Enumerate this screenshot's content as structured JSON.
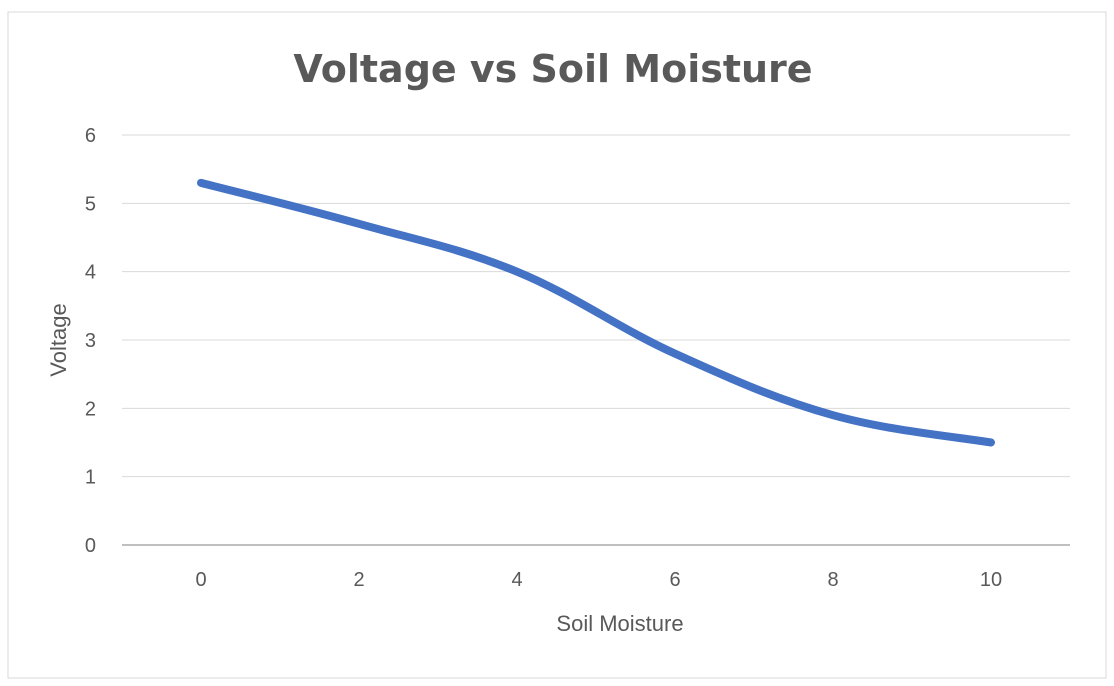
{
  "chart_data": {
    "type": "line",
    "title": "Voltage vs Soil Moisture",
    "xlabel": "Soil Moisture",
    "ylabel": "Voltage",
    "x": [
      0,
      2,
      4,
      6,
      8,
      10
    ],
    "series": [
      {
        "values": [
          5.3,
          4.7,
          4.0,
          2.8,
          1.9,
          1.5
        ]
      }
    ],
    "xticks": [
      "0",
      "2",
      "4",
      "6",
      "8",
      "10"
    ],
    "yticks": [
      "0",
      "1",
      "2",
      "3",
      "4",
      "5",
      "6"
    ],
    "xlim": [
      0,
      10
    ],
    "ylim": [
      0,
      6
    ],
    "grid": "horizontal",
    "legend": "none",
    "colors": {
      "line": "#4472C4",
      "grid": "#d9d9d9",
      "axis": "#bfbfbf",
      "text": "#595959"
    }
  }
}
